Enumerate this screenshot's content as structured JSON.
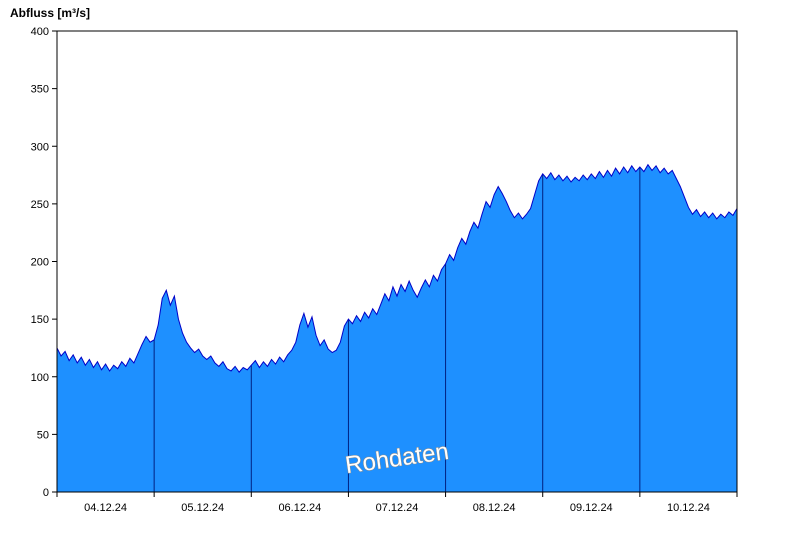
{
  "title": "Abfluss [m³/s]",
  "watermark": "Rohdaten",
  "chart_data": {
    "type": "area",
    "title": "Abfluss [m³/s]",
    "ylabel": "Abfluss [m³/s]",
    "xlabel": "",
    "ylim": [
      0,
      400
    ],
    "y_ticks": [
      0,
      50,
      100,
      150,
      200,
      250,
      300,
      350,
      400
    ],
    "x_tick_labels": [
      "04.12.24",
      "05.12.24",
      "06.12.24",
      "07.12.24",
      "08.12.24",
      "09.12.24",
      "10.12.24"
    ],
    "x_range_days": [
      0,
      7
    ],
    "sample_interval_hours": 1,
    "grid": "vertical-day-boundaries",
    "legend": "none",
    "annotations": [
      {
        "text": "Rohdaten",
        "style": "white-outlined-watermark",
        "rotation_deg": -8,
        "x": 398,
        "y": 466
      }
    ],
    "colors": {
      "fill": "#1E90FF",
      "line": "#0000C8",
      "grid": "#002080",
      "axis": "#000000",
      "background": "#FFFFFF"
    },
    "series": [
      {
        "name": "Abfluss",
        "unit": "m³/s",
        "values": [
          125,
          118,
          122,
          114,
          119,
          112,
          117,
          110,
          115,
          108,
          113,
          106,
          111,
          105,
          110,
          107,
          113,
          109,
          116,
          112,
          120,
          128,
          135,
          130,
          132,
          145,
          168,
          175,
          162,
          170,
          150,
          138,
          130,
          125,
          121,
          124,
          118,
          115,
          118,
          112,
          109,
          113,
          107,
          105,
          109,
          104,
          108,
          106,
          110,
          114,
          108,
          113,
          109,
          115,
          111,
          117,
          113,
          119,
          123,
          130,
          145,
          155,
          143,
          152,
          136,
          127,
          132,
          124,
          121,
          123,
          130,
          144,
          150,
          146,
          153,
          148,
          156,
          151,
          159,
          154,
          163,
          172,
          166,
          178,
          170,
          180,
          174,
          183,
          175,
          169,
          177,
          184,
          178,
          188,
          183,
          193,
          198,
          206,
          201,
          212,
          220,
          215,
          226,
          234,
          229,
          241,
          252,
          247,
          258,
          265,
          259,
          252,
          244,
          238,
          242,
          237,
          241,
          246,
          258,
          270,
          276,
          272,
          277,
          271,
          275,
          270,
          274,
          269,
          273,
          270,
          275,
          271,
          276,
          272,
          278,
          273,
          279,
          274,
          281,
          276,
          282,
          277,
          283,
          278,
          282,
          278,
          284,
          279,
          283,
          277,
          281,
          276,
          279,
          272,
          265,
          256,
          247,
          241,
          245,
          239,
          243,
          238,
          242,
          237,
          241,
          238,
          243,
          240,
          246
        ]
      }
    ]
  }
}
